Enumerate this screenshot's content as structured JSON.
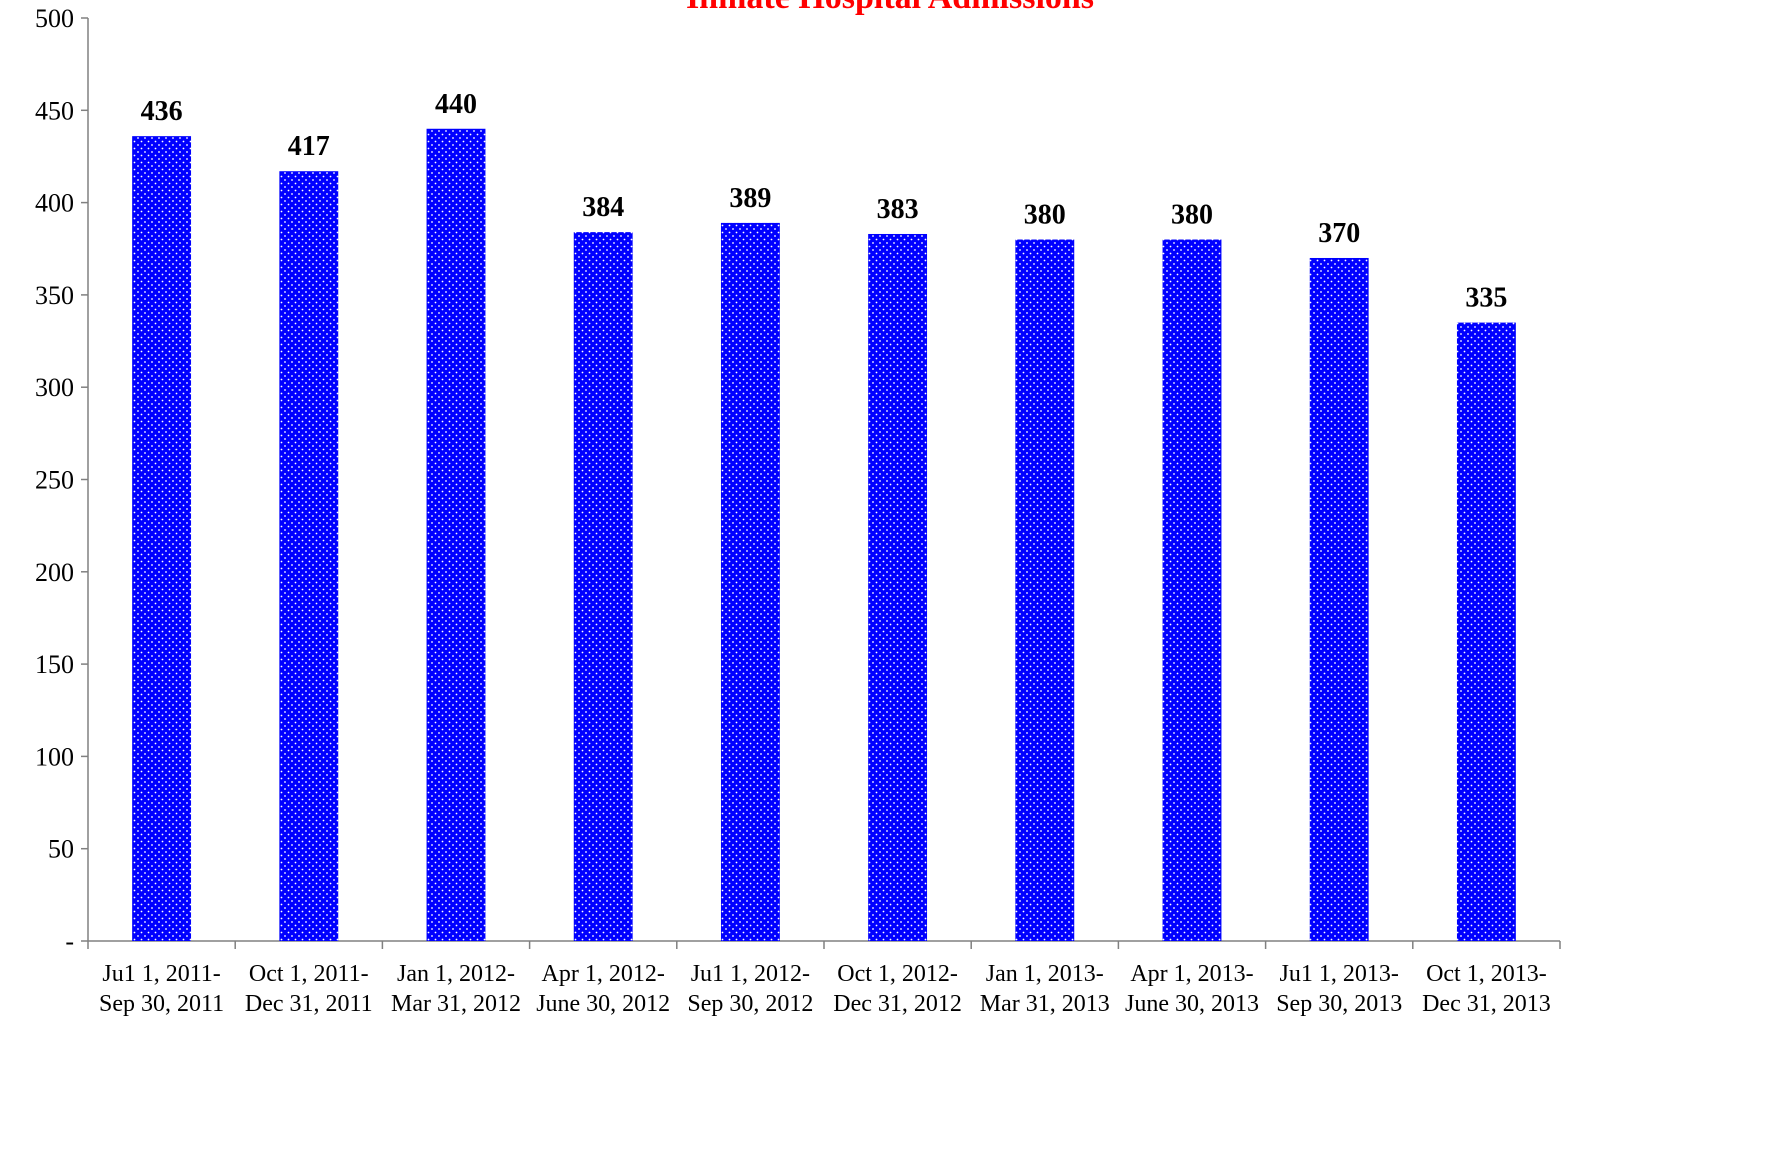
{
  "chart_data": {
    "type": "bar",
    "title": "Inmate Hospital Admissions",
    "title_color": "#ff0000",
    "bar_color": "#0000ff",
    "bar_pattern": "white-dots",
    "xlabel": "",
    "ylabel": "",
    "ylim": [
      0,
      500
    ],
    "y_ticks": [
      0,
      50,
      100,
      150,
      200,
      250,
      300,
      350,
      400,
      450,
      500
    ],
    "y_tick_labels": [
      "-",
      "50",
      "100",
      "150",
      "200",
      "250",
      "300",
      "350",
      "400",
      "450",
      "500"
    ],
    "grid": false,
    "legend": "none",
    "categories": [
      [
        "Ju1 1, 2011-",
        "Sep 30, 2011"
      ],
      [
        "Oct 1, 2011-",
        "Dec 31, 2011"
      ],
      [
        "Jan 1, 2012-",
        "Mar 31, 2012"
      ],
      [
        "Apr 1, 2012-",
        "June 30, 2012"
      ],
      [
        "Ju1 1, 2012-",
        "Sep 30, 2012"
      ],
      [
        "Oct 1, 2012-",
        "Dec 31, 2012"
      ],
      [
        "Jan 1, 2013-",
        "Mar 31, 2013"
      ],
      [
        "Apr 1, 2013-",
        "June 30, 2013"
      ],
      [
        "Ju1 1, 2013-",
        "Sep 30, 2013"
      ],
      [
        "Oct 1, 2013-",
        "Dec 31, 2013"
      ]
    ],
    "values": [
      436,
      417,
      440,
      384,
      389,
      383,
      380,
      380,
      370,
      335
    ],
    "data_labels": [
      "436",
      "417",
      "440",
      "384",
      "389",
      "383",
      "380",
      "380",
      "370",
      "335"
    ]
  }
}
